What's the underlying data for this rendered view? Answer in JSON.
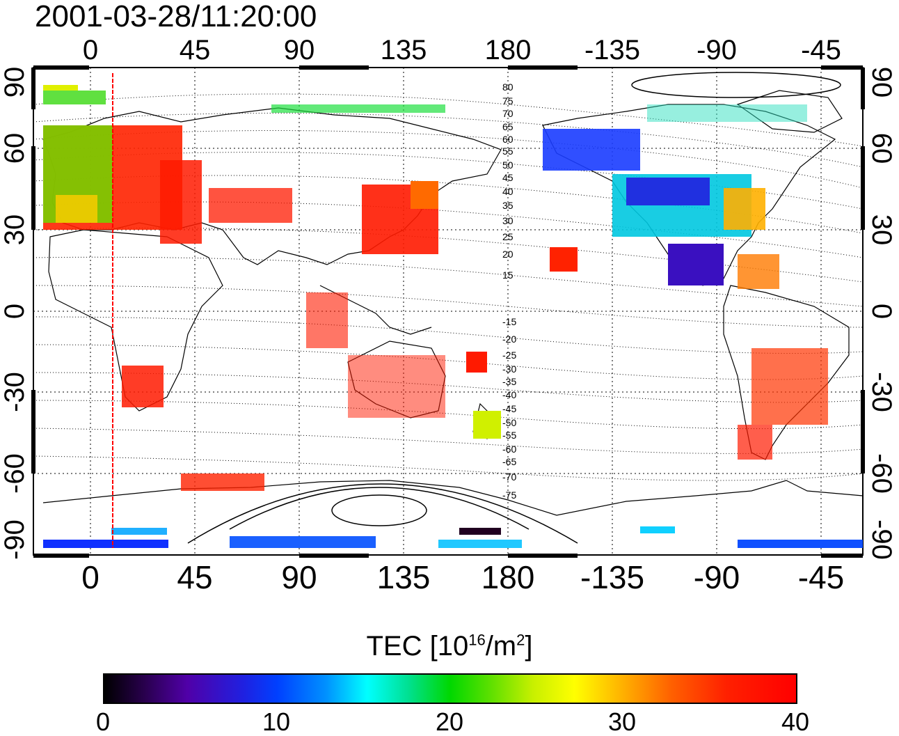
{
  "timestamp": "2001-03-28/11:20:00",
  "lon_ticks": [
    "0",
    "45",
    "90",
    "135",
    "180",
    "-135",
    "-90",
    "-45"
  ],
  "lat_ticks": [
    "90",
    "60",
    "30",
    "0",
    "-30",
    "-60",
    "-90"
  ],
  "contour_labels": [
    "80",
    "75",
    "70",
    "65",
    "60",
    "55",
    "50",
    "45",
    "40",
    "35",
    "30",
    "25",
    "20",
    "15",
    "-15",
    "-20",
    "-25",
    "-30",
    "-35",
    "-40",
    "-45",
    "-50",
    "-55",
    "-60",
    "-65",
    "-70",
    "-75"
  ],
  "colorbar": {
    "title_prefix": "TEC  [10",
    "title_sup1": "16",
    "title_mid": "/m",
    "title_sup2": "2",
    "title_suffix": "]",
    "ticks": [
      "0",
      "10",
      "20",
      "30",
      "40"
    ]
  },
  "colors": {
    "accent_line": "#ff0000",
    "scale_low": "#000000",
    "scale_high": "#ff0000"
  }
}
